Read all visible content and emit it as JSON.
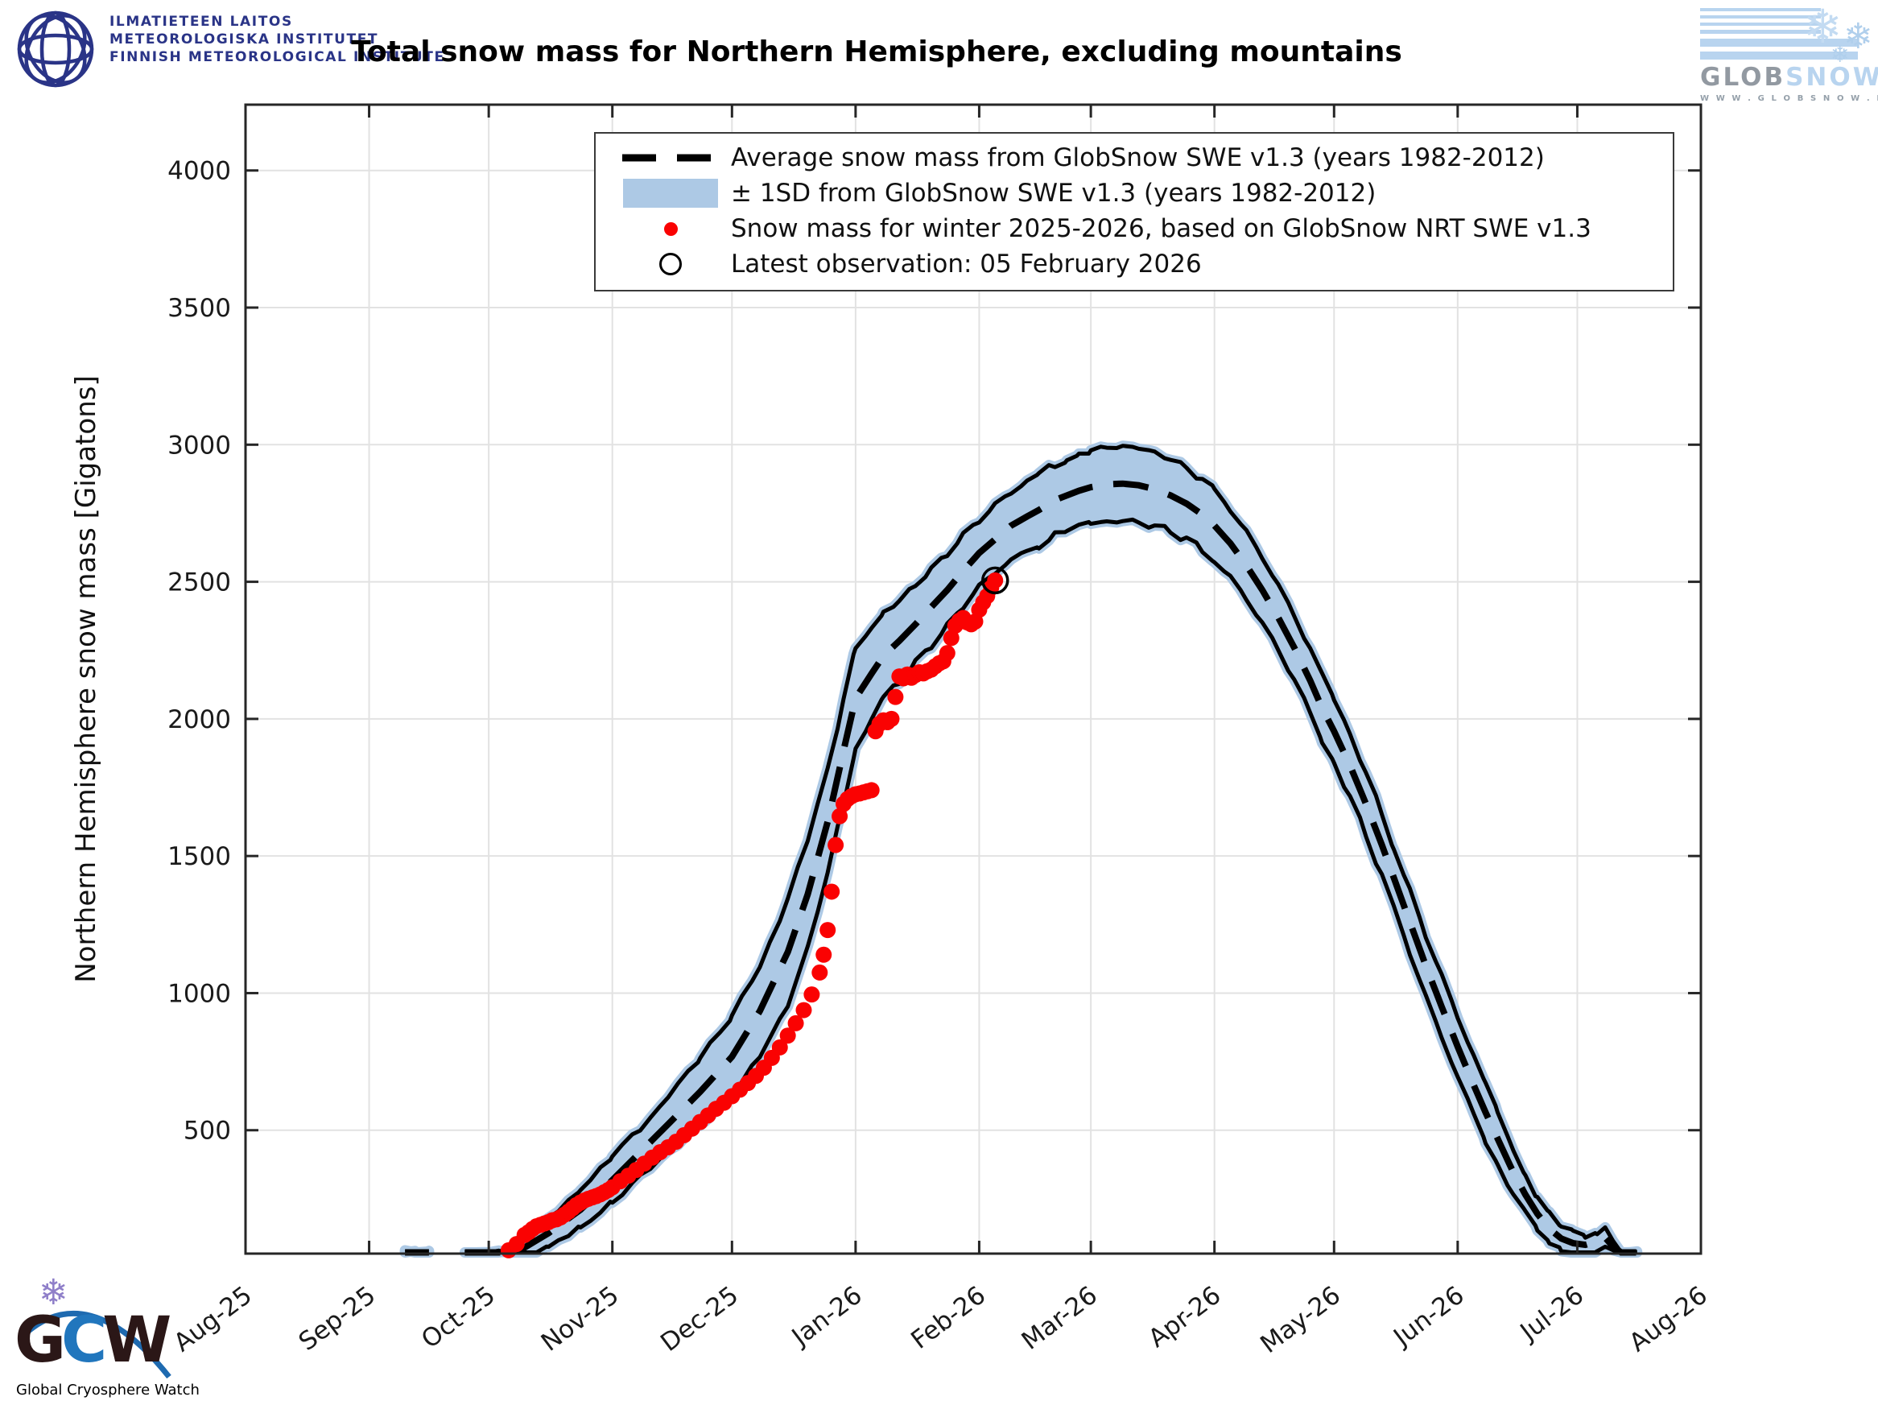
{
  "header": {
    "fmi_lines": [
      "ILMATIETEEN LAITOS",
      "METEOROLOGISKA INSTITUTET",
      "FINNISH METEOROLOGICAL INSTITUTE"
    ],
    "title": "Total snow mass for Northern Hemisphere, excluding mountains",
    "globsnow": {
      "brand_glob": "GLOB",
      "brand_snow": "SNOW",
      "url": "W W W . G L O B S N O W . I N F O"
    }
  },
  "legend": {
    "items": [
      {
        "marker": "dashed-line",
        "label": "Average snow mass from GlobSnow SWE v1.3 (years 1982-2012)"
      },
      {
        "marker": "band-patch",
        "label": "± 1SD from GlobSnow SWE v1.3 (years 1982-2012)"
      },
      {
        "marker": "red-dot",
        "label": "Snow mass for winter 2025-2026, based on GlobSnow NRT SWE v1.3"
      },
      {
        "marker": "open-circle",
        "label": "Latest observation: 05 February 2026"
      }
    ]
  },
  "footer": {
    "gcw_g": "G",
    "gcw_c": "C",
    "gcw_w": "W",
    "gcw_caption": "Global Cryosphere Watch",
    "snowflake": "❄"
  },
  "chart_data": {
    "type": "line",
    "title": "Total snow mass for Northern Hemisphere, excluding mountains",
    "xlabel": "",
    "ylabel": "Northern Hemisphere snow mass [Gigatons]",
    "ylim": [
      50,
      4240
    ],
    "grid": true,
    "legend_position": "upper center",
    "x_ticks": [
      {
        "label": "Aug-25",
        "day": 0
      },
      {
        "label": "Sep-25",
        "day": 31
      },
      {
        "label": "Oct-25",
        "day": 61
      },
      {
        "label": "Nov-25",
        "day": 92
      },
      {
        "label": "Dec-25",
        "day": 122
      },
      {
        "label": "Jan-26",
        "day": 153
      },
      {
        "label": "Feb-26",
        "day": 184
      },
      {
        "label": "Mar-26",
        "day": 212
      },
      {
        "label": "Apr-26",
        "day": 243
      },
      {
        "label": "May-26",
        "day": 273
      },
      {
        "label": "Jun-26",
        "day": 304
      },
      {
        "label": "Jul-26",
        "day": 334
      },
      {
        "label": "Aug-26",
        "day": 365
      }
    ],
    "y_ticks": [
      500,
      1000,
      1500,
      2000,
      2500,
      3000,
      3500,
      4000
    ],
    "blip_mean_sd": [
      [
        40,
        10,
        8
      ],
      [
        43,
        16,
        9
      ],
      [
        46,
        8,
        7
      ]
    ],
    "climatology_mean_sd": [
      [
        55,
        8,
        6
      ],
      [
        61,
        18,
        12
      ],
      [
        68,
        55,
        28
      ],
      [
        76,
        125,
        45
      ],
      [
        84,
        210,
        65
      ],
      [
        92,
        318,
        85
      ],
      [
        99,
        420,
        92
      ],
      [
        106,
        522,
        96
      ],
      [
        114,
        640,
        120
      ],
      [
        122,
        768,
        145
      ],
      [
        129,
        935,
        168
      ],
      [
        136,
        1150,
        188
      ],
      [
        141,
        1360,
        195
      ],
      [
        146,
        1625,
        195
      ],
      [
        150,
        1885,
        185
      ],
      [
        153,
        2075,
        180
      ],
      [
        157,
        2165,
        168
      ],
      [
        160,
        2230,
        155
      ],
      [
        164,
        2285,
        148
      ],
      [
        168,
        2345,
        142
      ],
      [
        172,
        2408,
        138
      ],
      [
        176,
        2470,
        133
      ],
      [
        180,
        2540,
        128
      ],
      [
        184,
        2605,
        122
      ],
      [
        188,
        2655,
        122
      ],
      [
        192,
        2705,
        124
      ],
      [
        196,
        2738,
        126
      ],
      [
        199,
        2762,
        128
      ],
      [
        203,
        2798,
        130
      ],
      [
        206,
        2815,
        132
      ],
      [
        209,
        2832,
        133
      ],
      [
        212,
        2845,
        134
      ],
      [
        216,
        2855,
        135
      ],
      [
        220,
        2858,
        136
      ],
      [
        224,
        2852,
        136
      ],
      [
        228,
        2838,
        134
      ],
      [
        232,
        2815,
        132
      ],
      [
        236,
        2785,
        130
      ],
      [
        240,
        2745,
        128
      ],
      [
        243,
        2705,
        126
      ],
      [
        247,
        2640,
        124
      ],
      [
        251,
        2560,
        122
      ],
      [
        255,
        2470,
        120
      ],
      [
        259,
        2370,
        118
      ],
      [
        263,
        2260,
        117
      ],
      [
        267,
        2140,
        116
      ],
      [
        270,
        2040,
        115
      ],
      [
        273,
        1955,
        114
      ],
      [
        277,
        1830,
        114
      ],
      [
        281,
        1690,
        114
      ],
      [
        285,
        1540,
        113
      ],
      [
        288,
        1420,
        113
      ],
      [
        292,
        1260,
        112
      ],
      [
        296,
        1100,
        112
      ],
      [
        300,
        950,
        111
      ],
      [
        304,
        805,
        110
      ],
      [
        308,
        665,
        105
      ],
      [
        311,
        565,
        100
      ],
      [
        314,
        470,
        92
      ],
      [
        318,
        345,
        82
      ],
      [
        321,
        265,
        70
      ],
      [
        324,
        195,
        60
      ],
      [
        327,
        140,
        50
      ],
      [
        330,
        105,
        42
      ],
      [
        333,
        88,
        35
      ],
      [
        336,
        82,
        30
      ],
      [
        339,
        95,
        28
      ],
      [
        341,
        108,
        26
      ],
      [
        343,
        75,
        22
      ],
      [
        345,
        45,
        15
      ],
      [
        347,
        22,
        10
      ],
      [
        349,
        8,
        5
      ]
    ],
    "winter_2025_2026_dots": [
      [
        66,
        62
      ],
      [
        68,
        85
      ],
      [
        70,
        118
      ],
      [
        71,
        128
      ],
      [
        72,
        140
      ],
      [
        73,
        150
      ],
      [
        74,
        155
      ],
      [
        75,
        160
      ],
      [
        76,
        165
      ],
      [
        77,
        172
      ],
      [
        78,
        175
      ],
      [
        79,
        182
      ],
      [
        80,
        192
      ],
      [
        81,
        203
      ],
      [
        82,
        215
      ],
      [
        83,
        227
      ],
      [
        84,
        236
      ],
      [
        85,
        244
      ],
      [
        86,
        250
      ],
      [
        87,
        255
      ],
      [
        88,
        260
      ],
      [
        89,
        266
      ],
      [
        90,
        274
      ],
      [
        91,
        282
      ],
      [
        92,
        292
      ],
      [
        94,
        314
      ],
      [
        96,
        334
      ],
      [
        98,
        355
      ],
      [
        100,
        378
      ],
      [
        102,
        400
      ],
      [
        104,
        420
      ],
      [
        106,
        438
      ],
      [
        108,
        458
      ],
      [
        110,
        482
      ],
      [
        112,
        506
      ],
      [
        114,
        530
      ],
      [
        116,
        554
      ],
      [
        118,
        578
      ],
      [
        120,
        600
      ],
      [
        122,
        624
      ],
      [
        124,
        648
      ],
      [
        126,
        672
      ],
      [
        128,
        698
      ],
      [
        130,
        728
      ],
      [
        132,
        764
      ],
      [
        134,
        802
      ],
      [
        136,
        845
      ],
      [
        138,
        890
      ],
      [
        140,
        938
      ],
      [
        142,
        995
      ],
      [
        144,
        1075
      ],
      [
        145,
        1140
      ],
      [
        146,
        1230
      ],
      [
        147,
        1370
      ],
      [
        148,
        1540
      ],
      [
        149,
        1645
      ],
      [
        150,
        1690
      ],
      [
        151,
        1708
      ],
      [
        152,
        1718
      ],
      [
        153,
        1725
      ],
      [
        154,
        1728
      ],
      [
        155,
        1732
      ],
      [
        156,
        1736
      ],
      [
        157,
        1740
      ],
      [
        158,
        1955
      ],
      [
        159,
        1982
      ],
      [
        160,
        1995
      ],
      [
        161,
        1988
      ],
      [
        162,
        2000
      ],
      [
        163,
        2080
      ],
      [
        164,
        2155
      ],
      [
        165,
        2148
      ],
      [
        166,
        2162
      ],
      [
        167,
        2150
      ],
      [
        168,
        2160
      ],
      [
        169,
        2170
      ],
      [
        170,
        2166
      ],
      [
        171,
        2174
      ],
      [
        172,
        2180
      ],
      [
        173,
        2192
      ],
      [
        174,
        2203
      ],
      [
        175,
        2210
      ],
      [
        176,
        2240
      ],
      [
        177,
        2295
      ],
      [
        178,
        2340
      ],
      [
        179,
        2358
      ],
      [
        180,
        2368
      ],
      [
        181,
        2352
      ],
      [
        182,
        2345
      ],
      [
        183,
        2355
      ],
      [
        184,
        2398
      ],
      [
        185,
        2425
      ],
      [
        186,
        2448
      ],
      [
        187,
        2478
      ]
    ],
    "latest_observation": {
      "day": 188,
      "value": 2505,
      "date_label": "05 February 2026"
    },
    "colors": {
      "band": "#adc9e5",
      "mean": "#000000",
      "dots": "#fa0202",
      "axis": "#262626",
      "grid": "#e2e2e2",
      "tick_text": "#1a1a1a"
    }
  }
}
